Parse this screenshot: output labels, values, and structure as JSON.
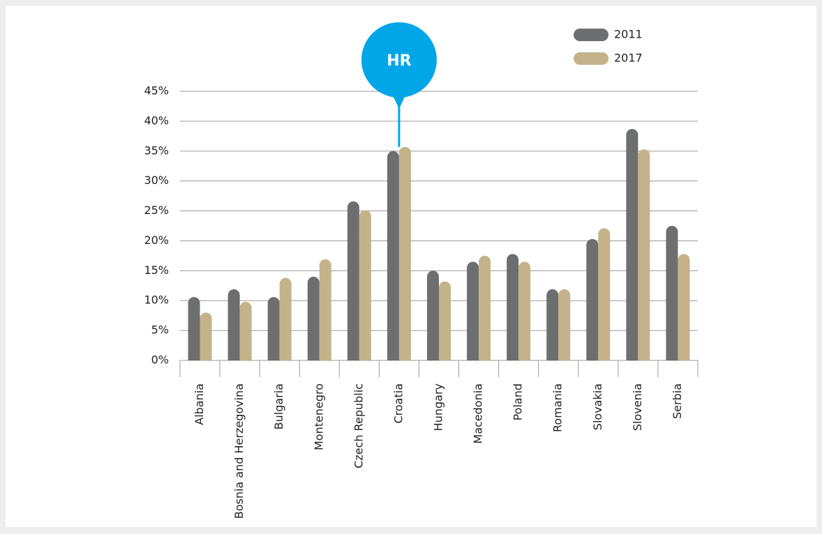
{
  "chart_data": {
    "type": "bar",
    "categories": [
      "Albania",
      "Bosnia and Herzegovina",
      "Bulgaria",
      "Montenegro",
      "Czech Republic",
      "Croatia",
      "Hungary",
      "Macedonia",
      "Poland",
      "Romania",
      "Slovakia",
      "Slovenia",
      "Serbia"
    ],
    "series": [
      {
        "name": "2011",
        "color": "#6d6e70",
        "values": [
          10.6,
          11.9,
          10.6,
          14.0,
          26.6,
          35.0,
          15.0,
          16.5,
          17.8,
          11.9,
          20.3,
          38.7,
          22.5
        ]
      },
      {
        "name": "2017",
        "color": "#c4b38a",
        "values": [
          8.0,
          9.8,
          13.8,
          16.9,
          25.1,
          35.7,
          13.2,
          17.5,
          16.5,
          11.9,
          22.1,
          35.3,
          17.8
        ]
      }
    ],
    "ylim": [
      0,
      45
    ],
    "yticks": [
      {
        "value": 0,
        "label": "0%"
      },
      {
        "value": 5,
        "label": "5%"
      },
      {
        "value": 10,
        "label": "10%"
      },
      {
        "value": 15,
        "label": "15%"
      },
      {
        "value": 20,
        "label": "20%"
      },
      {
        "value": 25,
        "label": "25%"
      },
      {
        "value": 30,
        "label": "30%"
      },
      {
        "value": 35,
        "label": "35%"
      },
      {
        "value": 40,
        "label": "40%"
      },
      {
        "value": 45,
        "label": "45%"
      }
    ],
    "grid": true,
    "legend": "top right",
    "annotation": {
      "text": "HR",
      "category": "Croatia",
      "color": "#00a6e6"
    }
  }
}
